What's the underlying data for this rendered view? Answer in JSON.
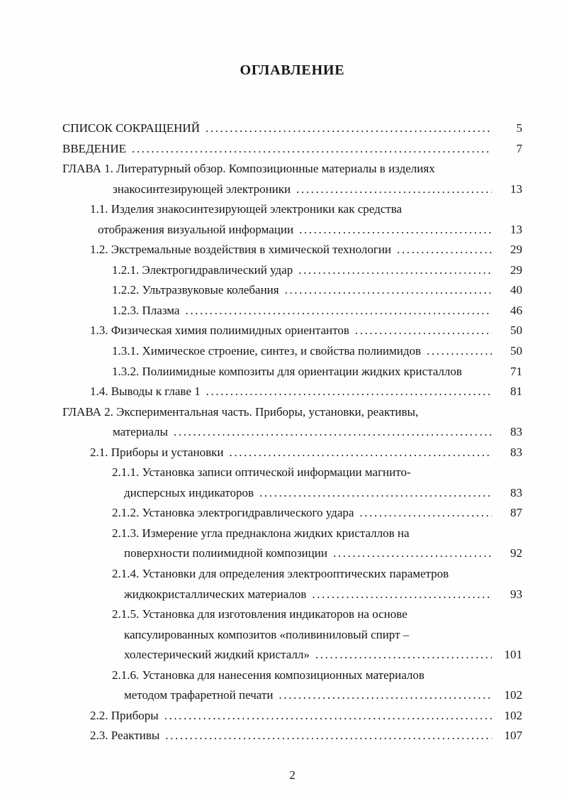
{
  "document": {
    "title": "ОГЛАВЛЕНИЕ",
    "footer_page_number": "2"
  },
  "toc": {
    "entries": [
      {
        "text": "СПИСОК СОКРАЩЕНИЙ",
        "level": "h0",
        "page": "5",
        "dots": true
      },
      {
        "text": "ВВЕДЕНИЕ",
        "level": "h0",
        "page": "7",
        "dots": true
      },
      {
        "text": "ГЛАВА 1. Литературный обзор. Композиционные материалы в изделиях",
        "level": "h0",
        "page": null,
        "dots": false
      },
      {
        "text": "знакосинтезирующей электроники",
        "level": "c0",
        "page": "13",
        "dots": true
      },
      {
        "text": "1.1. Изделия знакосинтезирующей электроники как средства",
        "level": "h1",
        "page": null,
        "dots": false
      },
      {
        "text": "отображения визуальной информации",
        "level": "c1",
        "page": "13",
        "dots": true
      },
      {
        "text": "1.2. Экстремальные воздействия в химической технологии",
        "level": "h1",
        "page": "29",
        "dots": true
      },
      {
        "text": "1.2.1. Электрогидравлический удар",
        "level": "h2",
        "page": "29",
        "dots": true
      },
      {
        "text": "1.2.2. Ультразвуковые колебания",
        "level": "h2",
        "page": "40",
        "dots": true
      },
      {
        "text": "1.2.3. Плазма",
        "level": "h2",
        "page": "46",
        "dots": true
      },
      {
        "text": "1.3. Физическая химия полиимидных ориентантов",
        "level": "h1",
        "page": "50",
        "dots": true
      },
      {
        "text": "1.3.1. Химическое строение, синтез, и свойства полиимидов",
        "level": "h2",
        "page": "50",
        "dots": true
      },
      {
        "text": "1.3.2. Полиимидные композиты для ориентации жидких кристаллов",
        "level": "h2",
        "page": "71",
        "dots": false
      },
      {
        "text": "1.4. Выводы к главе 1",
        "level": "h1",
        "page": "81",
        "dots": true
      },
      {
        "text": "ГЛАВА 2. Экспериментальная часть. Приборы, установки, реактивы,",
        "level": "h0",
        "page": null,
        "dots": false
      },
      {
        "text": "материалы",
        "level": "c0",
        "page": "83",
        "dots": true
      },
      {
        "text": "2.1. Приборы и установки",
        "level": "h1",
        "page": "83",
        "dots": true
      },
      {
        "text": "2.1.1. Установка записи оптической информации магнито-",
        "level": "h2",
        "page": null,
        "dots": false
      },
      {
        "text": "дисперсных индикаторов",
        "level": "c2",
        "page": "83",
        "dots": true
      },
      {
        "text": "2.1.2. Установка электрогидравлического удара",
        "level": "h2",
        "page": "87",
        "dots": true
      },
      {
        "text": "2.1.3. Измерение угла преднаклона жидких кристаллов на",
        "level": "h2",
        "page": null,
        "dots": false
      },
      {
        "text": "поверхности полиимидной композиции",
        "level": "c2",
        "page": "92",
        "dots": true
      },
      {
        "text": "2.1.4. Установки для определения электрооптических параметров",
        "level": "h2",
        "page": null,
        "dots": false
      },
      {
        "text": "жидкокристаллических материалов",
        "level": "c2",
        "page": "93",
        "dots": true
      },
      {
        "text": "2.1.5. Установка для изготовления индикаторов на основе",
        "level": "h2",
        "page": null,
        "dots": false
      },
      {
        "text": "капсулированных композитов «поливиниловый спирт –",
        "level": "c2",
        "page": null,
        "dots": false
      },
      {
        "text": "холестерический жидкий кристалл»",
        "level": "c2",
        "page": "101",
        "dots": true
      },
      {
        "text": "2.1.6. Установка для нанесения композиционных материалов",
        "level": "h2",
        "page": null,
        "dots": false
      },
      {
        "text": "методом трафаретной печати",
        "level": "c2",
        "page": "102",
        "dots": true
      },
      {
        "text": "2.2. Приборы",
        "level": "h1",
        "page": "102",
        "dots": true
      },
      {
        "text": "2.3. Реактивы",
        "level": "h1",
        "page": "107",
        "dots": true
      }
    ]
  }
}
